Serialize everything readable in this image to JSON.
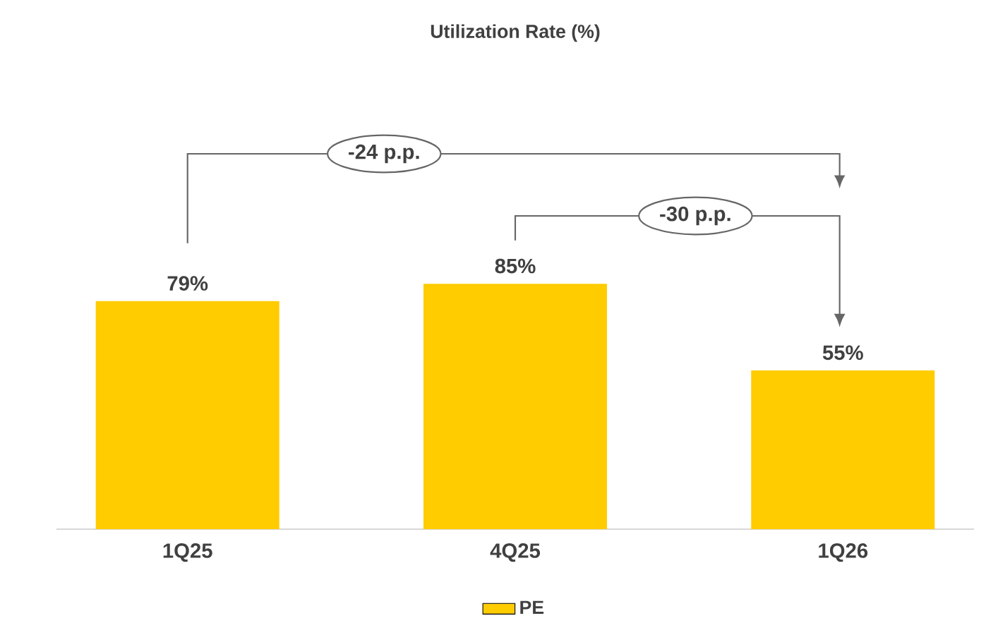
{
  "chart_data": {
    "type": "bar",
    "title": "Utilization Rate (%)",
    "categories": [
      "1Q25",
      "4Q25",
      "1Q26"
    ],
    "series": [
      {
        "name": "PE",
        "color": "#ffcc00",
        "values": [
          79,
          85,
          55
        ],
        "value_labels": [
          "79%",
          "85%",
          "55%"
        ]
      }
    ],
    "ylim": [
      0,
      130
    ],
    "tick_labels": "x",
    "legend": "bottom",
    "annotations": [
      "-24 p.p.",
      "-30 p.p."
    ]
  }
}
